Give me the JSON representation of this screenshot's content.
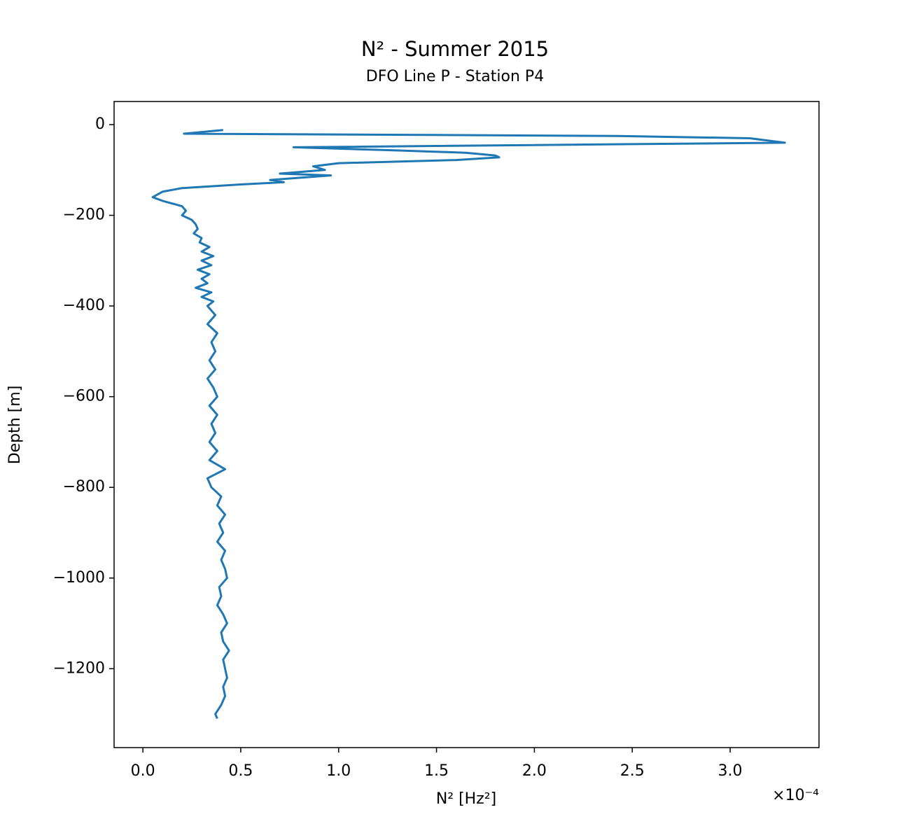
{
  "chart_data": {
    "type": "line",
    "title": "N² - Summer 2015",
    "subtitle": "DFO Line P - Station P4",
    "xlabel": "N² [Hz²]",
    "ylabel": "Depth [m]",
    "x_offset_label": "×10⁻⁴",
    "color": "#1f77b4",
    "grid": false,
    "xlim": [
      -0.147,
      3.454
    ],
    "ylim": [
      -1374,
      51
    ],
    "xticks": [
      {
        "value": 0,
        "label": "0.0"
      },
      0.5,
      {
        "value": 1,
        "label": "1.0"
      },
      1.5,
      {
        "value": 2,
        "label": "2.0"
      },
      2.5,
      {
        "value": 3,
        "label": "3.0"
      }
    ],
    "yticks": [
      0,
      {
        "value": -200,
        "label": "−200"
      },
      {
        "value": -400,
        "label": "−400"
      },
      {
        "value": -600,
        "label": "−600"
      },
      {
        "value": -800,
        "label": "−800"
      },
      {
        "value": -1000,
        "label": "−1000"
      },
      {
        "value": -1200,
        "label": "−1200"
      }
    ],
    "x": [
      0.41,
      0.21,
      2.42,
      3.1,
      3.28,
      0.77,
      1.31,
      1.65,
      1.8,
      1.82,
      1.6,
      1.0,
      0.87,
      0.93,
      0.7,
      0.96,
      0.65,
      0.72,
      0.5,
      0.2,
      0.1,
      0.05,
      0.1,
      0.2,
      0.22,
      0.2,
      0.25,
      0.27,
      0.28,
      0.26,
      0.3,
      0.29,
      0.34,
      0.3,
      0.36,
      0.3,
      0.35,
      0.28,
      0.34,
      0.3,
      0.33,
      0.27,
      0.35,
      0.3,
      0.36,
      0.33,
      0.37,
      0.33,
      0.38,
      0.35,
      0.37,
      0.34,
      0.37,
      0.33,
      0.36,
      0.38,
      0.34,
      0.38,
      0.35,
      0.37,
      0.34,
      0.38,
      0.34,
      0.42,
      0.33,
      0.35,
      0.4,
      0.38,
      0.42,
      0.39,
      0.41,
      0.38,
      0.42,
      0.4,
      0.42,
      0.43,
      0.39,
      0.4,
      0.38,
      0.41,
      0.43,
      0.4,
      0.41,
      0.44,
      0.41,
      0.42,
      0.43,
      0.41,
      0.42,
      0.4,
      0.37,
      0.38
    ],
    "y": [
      -12,
      -20,
      -25,
      -30,
      -40,
      -50,
      -57,
      -62,
      -68,
      -72,
      -78,
      -85,
      -92,
      -100,
      -108,
      -112,
      -122,
      -127,
      -132,
      -140,
      -148,
      -160,
      -168,
      -180,
      -190,
      -200,
      -210,
      -220,
      -230,
      -240,
      -250,
      -260,
      -270,
      -280,
      -290,
      -300,
      -310,
      -320,
      -330,
      -340,
      -350,
      -360,
      -370,
      -380,
      -390,
      -400,
      -420,
      -440,
      -460,
      -480,
      -500,
      -520,
      -540,
      -560,
      -580,
      -600,
      -620,
      -640,
      -660,
      -680,
      -700,
      -720,
      -740,
      -760,
      -780,
      -800,
      -820,
      -840,
      -860,
      -880,
      -900,
      -920,
      -940,
      -960,
      -980,
      -1000,
      -1020,
      -1040,
      -1060,
      -1080,
      -1100,
      -1120,
      -1140,
      -1160,
      -1180,
      -1200,
      -1220,
      -1240,
      -1260,
      -1280,
      -1300,
      -1310
    ]
  }
}
